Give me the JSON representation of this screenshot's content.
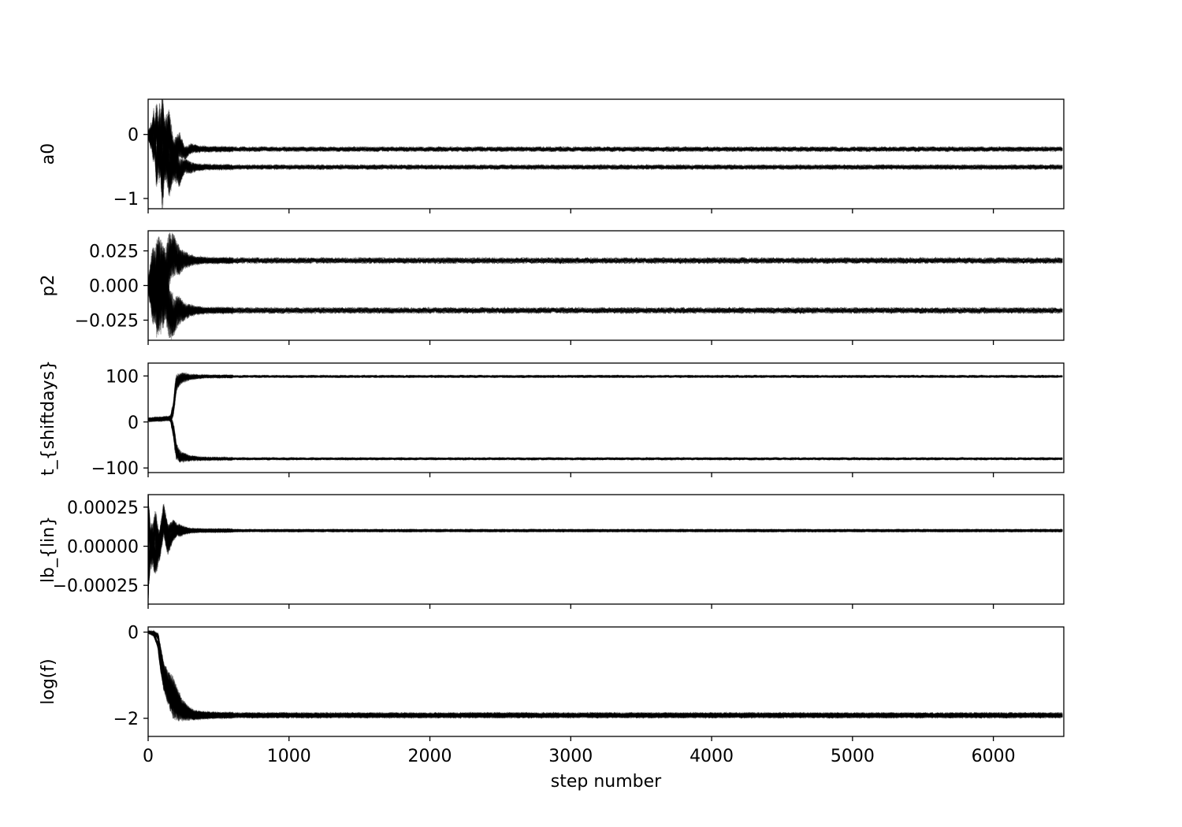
{
  "chart_data": {
    "type": "line",
    "xlabel": "step number",
    "xlim": [
      0,
      6500
    ],
    "xticks": [
      0,
      1000,
      2000,
      3000,
      4000,
      5000,
      6000
    ],
    "xtick_labels": [
      "0",
      "1000",
      "2000",
      "3000",
      "4000",
      "5000",
      "6000"
    ],
    "line_color": "#000000",
    "line_alpha": 0.3,
    "panels": [
      {
        "ylabel": "a0",
        "ylim": [
          -1.16,
          0.55
        ],
        "yticks": [
          0,
          -1
        ],
        "ytick_labels": [
          "0",
          "−1"
        ],
        "traces": [
          {
            "name": "",
            "x": [
              0,
              20,
              40,
              60,
              80,
              100,
              120,
              150,
              180,
              220,
              260,
              300,
              400,
              600,
              1000,
              3000,
              6500
            ],
            "y": [
              0.0,
              0.05,
              -0.25,
              0.15,
              -0.35,
              0.1,
              -0.3,
              0.05,
              -0.4,
              -0.15,
              -0.3,
              -0.22,
              -0.23,
              -0.23,
              -0.23,
              -0.23,
              -0.23
            ]
          },
          {
            "name": "",
            "x": [
              0,
              20,
              40,
              60,
              80,
              100,
              120,
              150,
              180,
              220,
              260,
              300,
              400,
              600,
              1000,
              3000,
              6500
            ],
            "y": [
              0.0,
              -0.1,
              0.2,
              -0.6,
              0.1,
              -0.7,
              -0.2,
              -0.6,
              -0.4,
              -0.6,
              -0.48,
              -0.52,
              -0.51,
              -0.51,
              -0.51,
              -0.51,
              -0.51
            ]
          }
        ],
        "spread": [
          {
            "x": [
              0,
              100,
              180,
              260,
              350,
              450,
              6500
            ],
            "half_width": [
              0.05,
              0.55,
              0.3,
              0.1,
              0.05,
              0.035,
              0.035
            ]
          },
          {
            "x": [
              0,
              100,
              180,
              260,
              350,
              450,
              6500
            ],
            "half_width": [
              0.05,
              0.5,
              0.3,
              0.12,
              0.05,
              0.035,
              0.035
            ]
          }
        ]
      },
      {
        "ylabel": "p2",
        "ylim": [
          -0.0395,
          0.0395
        ],
        "yticks": [
          0.025,
          0.0,
          -0.025
        ],
        "ytick_labels": [
          "0.025",
          "0.000",
          "−0.025"
        ],
        "traces": [
          {
            "name": "",
            "x": [
              0,
              30,
              60,
              90,
              120,
              150,
              180,
              220,
              260,
              320,
              400,
              600,
              6500
            ],
            "y": [
              0.0,
              0.01,
              -0.005,
              0.005,
              0.0,
              0.02,
              0.022,
              0.018,
              0.0185,
              0.018,
              0.018,
              0.018,
              0.018
            ]
          },
          {
            "name": "",
            "x": [
              0,
              30,
              60,
              90,
              120,
              150,
              180,
              220,
              260,
              320,
              400,
              600,
              6500
            ],
            "y": [
              0.0,
              -0.01,
              0.005,
              -0.005,
              0.0,
              -0.02,
              -0.022,
              -0.018,
              -0.0185,
              -0.018,
              -0.018,
              -0.018,
              -0.018
            ]
          }
        ],
        "spread": [
          {
            "x": [
              0,
              70,
              140,
              200,
              260,
              330,
              420,
              6500
            ],
            "half_width": [
              0.004,
              0.034,
              0.02,
              0.012,
              0.006,
              0.003,
              0.002,
              0.002
            ]
          },
          {
            "x": [
              0,
              70,
              140,
              200,
              260,
              330,
              420,
              6500
            ],
            "half_width": [
              0.004,
              0.034,
              0.02,
              0.012,
              0.006,
              0.003,
              0.002,
              0.002
            ]
          }
        ]
      },
      {
        "ylabel": "t_{shiftdays}",
        "ylim": [
          -110,
          128
        ],
        "yticks": [
          100,
          0,
          -100
        ],
        "ytick_labels": [
          "100",
          "0",
          "−100"
        ],
        "traces": [
          {
            "name": "",
            "x": [
              0,
              60,
              120,
              160,
              180,
              200,
              230,
              270,
              320,
              400,
              600,
              6500
            ],
            "y": [
              5,
              6,
              7,
              8,
              30,
              85,
              95,
              97,
              98,
              99,
              99,
              99
            ]
          },
          {
            "name": "",
            "x": [
              0,
              60,
              120,
              160,
              180,
              200,
              230,
              270,
              320,
              400,
              600,
              6500
            ],
            "y": [
              5,
              6,
              7,
              8,
              -20,
              -65,
              -75,
              -78,
              -79,
              -80,
              -80,
              -80
            ]
          }
        ],
        "spread": [
          {
            "x": [
              0,
              150,
              190,
              230,
              300,
              380,
              450,
              6500
            ],
            "half_width": [
              3,
              4,
              20,
              12,
              5,
              3,
              2.5,
              2.5
            ]
          },
          {
            "x": [
              0,
              150,
              190,
              230,
              300,
              380,
              450,
              6500
            ],
            "half_width": [
              3,
              4,
              20,
              12,
              5,
              3,
              2.5,
              2.5
            ]
          }
        ]
      },
      {
        "ylabel": "lb_{lin}",
        "ylim": [
          -0.00037,
          0.00033
        ],
        "yticks": [
          0.00025,
          0.0,
          -0.00025
        ],
        "ytick_labels": [
          "0.00025",
          "0.00000",
          "−0.00025"
        ],
        "traces": [
          {
            "name": "",
            "x": [
              0,
              5,
              20,
              50,
              80,
              110,
              140,
              180,
              220,
              280,
              350,
              500,
              6500
            ],
            "y": [
              -0.0003,
              0.0002,
              -5e-05,
              0.00012,
              0.0,
              0.0002,
              8e-05,
              0.00013,
              9e-05,
              0.0001,
              0.0001,
              0.0001,
              0.0001
            ]
          },
          {
            "name": "",
            "x": [
              0,
              5,
              20,
              50,
              80,
              110,
              140,
              180,
              220,
              280,
              350,
              500,
              6500
            ],
            "y": [
              0.0003,
              -0.0002,
              5e-05,
              -8e-05,
              0.0,
              0.00015,
              0.0,
              8e-05,
              0.00011,
              0.0001,
              0.0001,
              0.0001,
              0.0001
            ]
          }
        ],
        "spread": [
          {
            "x": [
              0,
              30,
              90,
              150,
              220,
              300,
              400,
              6500
            ],
            "half_width": [
              6e-05,
              0.00012,
              9e-05,
              5e-05,
              3e-05,
              1.2e-05,
              8e-06,
              8e-06
            ]
          },
          {
            "x": [
              0,
              30,
              90,
              150,
              220,
              300,
              400,
              6500
            ],
            "half_width": [
              6e-05,
              0.00012,
              9e-05,
              5e-05,
              3e-05,
              1.2e-05,
              8e-06,
              8e-06
            ]
          }
        ]
      },
      {
        "ylabel": "log(f)",
        "ylim": [
          -2.42,
          0.12
        ],
        "yticks": [
          0,
          -2
        ],
        "ytick_labels": [
          "0",
          "−2"
        ],
        "traces": [
          {
            "name": "",
            "x": [
              0,
              40,
              70,
              90,
              110,
              140,
              170,
              200,
              240,
              280,
              330,
              400,
              600,
              6500
            ],
            "y": [
              0.0,
              -0.02,
              -0.1,
              -0.5,
              -0.9,
              -1.2,
              -1.35,
              -1.55,
              -1.75,
              -1.85,
              -1.92,
              -1.93,
              -1.93,
              -1.93
            ]
          },
          {
            "name": "",
            "x": [
              0,
              40,
              70,
              90,
              110,
              140,
              170,
              200,
              240,
              280,
              330,
              400,
              600,
              6500
            ],
            "y": [
              0.0,
              -0.05,
              -0.3,
              -0.8,
              -1.1,
              -1.4,
              -1.6,
              -1.75,
              -1.85,
              -1.9,
              -1.93,
              -1.93,
              -1.93,
              -1.93
            ]
          }
        ],
        "spread": [
          {
            "x": [
              0,
              60,
              120,
              180,
              240,
              300,
              380,
              500,
              6500
            ],
            "half_width": [
              0.02,
              0.05,
              0.25,
              0.35,
              0.2,
              0.12,
              0.08,
              0.06,
              0.06
            ]
          },
          {
            "x": [
              0,
              60,
              120,
              180,
              240,
              300,
              380,
              500,
              6500
            ],
            "half_width": [
              0.02,
              0.05,
              0.25,
              0.35,
              0.2,
              0.12,
              0.08,
              0.06,
              0.06
            ]
          }
        ]
      }
    ]
  }
}
